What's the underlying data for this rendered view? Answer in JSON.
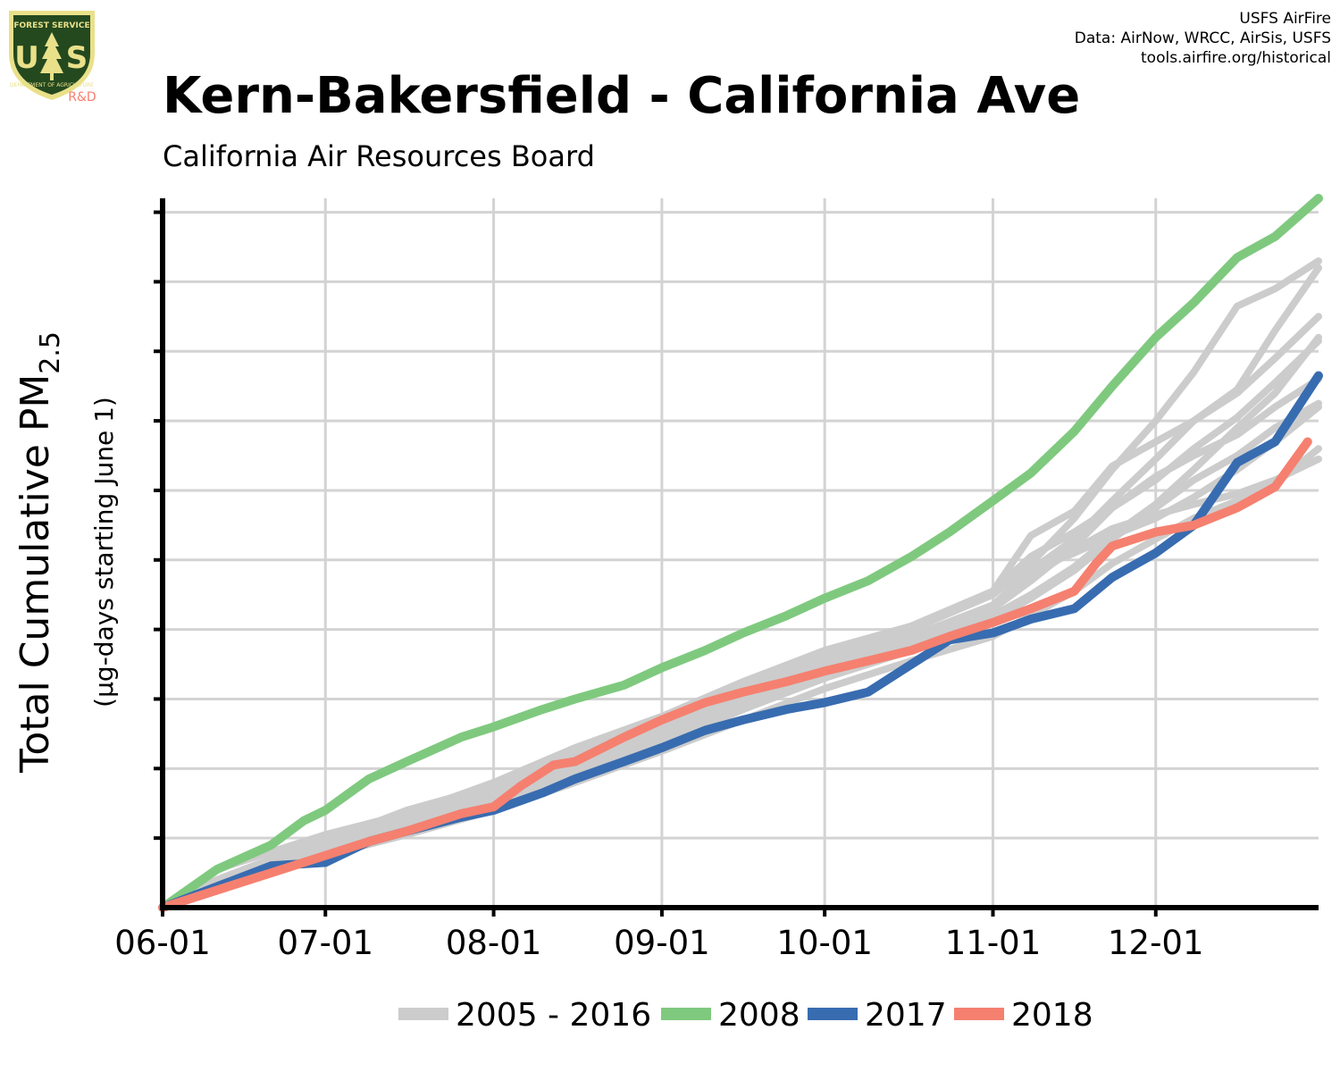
{
  "header": {
    "title": "Kern-Bakersfield - California Ave",
    "subtitle": "California Air Resources Board",
    "credits": [
      "USFS AirFire",
      "Data: AirNow, WRCC, AirSis, USFS",
      "tools.airfire.org/historical"
    ],
    "logo": {
      "top_text": "FOREST SERVICE",
      "initials_left": "U",
      "initials_right": "S",
      "bottom_text": "DEPARTMENT OF AGRICULTURE",
      "tag": "R&D"
    }
  },
  "colors": {
    "history": "#cccccc",
    "y2008": "#7fc97f",
    "y2017": "#386cb0",
    "y2018": "#f58070",
    "grid": "#d3d3d3",
    "axis": "#000000",
    "logo_shield": "#24491f",
    "logo_gold": "#e9e08a",
    "logo_tag": "#f58070"
  },
  "chart_data": {
    "type": "line",
    "title": "Kern-Bakersfield - California Ave",
    "subtitle": "California Air Resources Board",
    "ylabel_main": "Total Cumulative PM",
    "ylabel_subscript": "2.5",
    "ylabel_units": "(µg-days starting June 1)",
    "x_ticks": [
      "06-01",
      "07-01",
      "08-01",
      "09-01",
      "10-01",
      "11-01",
      "12-01"
    ],
    "x_tick_days": [
      0,
      30,
      61,
      92,
      122,
      153,
      183
    ],
    "xlim": [
      0,
      213
    ],
    "ylim": [
      0,
      10.2
    ],
    "y_ticks_unlabeled": [
      1,
      2,
      3,
      4,
      5,
      6,
      7,
      8,
      9,
      10
    ],
    "grid": true,
    "legend_position": "bottom",
    "legend": [
      {
        "label": "2005 - 2016",
        "color": "#cccccc"
      },
      {
        "label": "2008",
        "color": "#7fc97f"
      },
      {
        "label": "2017",
        "color": "#386cb0"
      },
      {
        "label": "2018",
        "color": "#f58070"
      }
    ],
    "history_series": [
      {
        "x": [
          0,
          10,
          20,
          30,
          45,
          61,
          76,
          92,
          107,
          122,
          138,
          153,
          160,
          168,
          175,
          183,
          190,
          198,
          205,
          213
        ],
        "y": [
          0,
          0.55,
          0.8,
          1.05,
          1.35,
          1.8,
          2.3,
          2.75,
          3.25,
          3.7,
          4.05,
          4.55,
          5.35,
          5.7,
          6.35,
          6.7,
          7.0,
          7.45,
          8.3,
          9.2
        ]
      },
      {
        "x": [
          0,
          10,
          20,
          30,
          45,
          61,
          76,
          92,
          107,
          122,
          138,
          153,
          160,
          168,
          175,
          183,
          190,
          198,
          205,
          213
        ],
        "y": [
          0,
          0.4,
          0.7,
          0.95,
          1.4,
          1.75,
          2.2,
          2.65,
          3.1,
          3.55,
          4.0,
          4.5,
          4.95,
          5.6,
          6.3,
          7.0,
          7.7,
          8.65,
          8.9,
          9.3
        ]
      },
      {
        "x": [
          0,
          10,
          20,
          30,
          45,
          61,
          76,
          92,
          107,
          122,
          138,
          153,
          160,
          168,
          175,
          183,
          190,
          198,
          205,
          213
        ],
        "y": [
          0,
          0.35,
          0.6,
          0.9,
          1.2,
          1.65,
          2.1,
          2.6,
          3.05,
          3.5,
          3.9,
          4.35,
          4.85,
          5.3,
          5.85,
          6.45,
          7.0,
          7.4,
          7.9,
          8.5
        ]
      },
      {
        "x": [
          0,
          10,
          20,
          30,
          45,
          61,
          76,
          92,
          107,
          122,
          138,
          153,
          160,
          168,
          175,
          183,
          190,
          198,
          205,
          213
        ],
        "y": [
          0,
          0.3,
          0.55,
          0.85,
          1.15,
          1.5,
          1.9,
          2.35,
          2.85,
          3.3,
          3.75,
          4.2,
          4.5,
          4.9,
          5.35,
          5.8,
          6.3,
          6.9,
          7.4,
          8.2
        ]
      },
      {
        "x": [
          0,
          10,
          20,
          30,
          45,
          61,
          76,
          92,
          107,
          122,
          138,
          153,
          160,
          168,
          175,
          183,
          190,
          198,
          205,
          213
        ],
        "y": [
          0,
          0.3,
          0.5,
          0.8,
          1.1,
          1.5,
          1.95,
          2.45,
          2.9,
          3.35,
          3.8,
          4.3,
          4.75,
          5.15,
          5.45,
          5.65,
          5.8,
          5.95,
          6.15,
          6.45
        ]
      },
      {
        "x": [
          0,
          10,
          20,
          30,
          45,
          61,
          76,
          92,
          107,
          122,
          138,
          153,
          160,
          168,
          175,
          183,
          190,
          198,
          205,
          213
        ],
        "y": [
          0,
          0.35,
          0.6,
          0.95,
          1.3,
          1.7,
          2.15,
          2.6,
          3.05,
          3.5,
          3.9,
          4.35,
          4.85,
          5.1,
          5.35,
          5.6,
          5.9,
          6.3,
          6.7,
          7.2
        ]
      },
      {
        "x": [
          0,
          10,
          20,
          30,
          45,
          61,
          76,
          92,
          107,
          122,
          138,
          153,
          160,
          168,
          175,
          183,
          190,
          198,
          205,
          213
        ],
        "y": [
          0,
          0.3,
          0.5,
          0.75,
          1.05,
          1.4,
          1.8,
          2.25,
          2.7,
          3.15,
          3.55,
          3.9,
          4.2,
          4.55,
          4.95,
          5.3,
          5.6,
          5.85,
          6.1,
          6.6
        ]
      },
      {
        "x": [
          0,
          10,
          20,
          30,
          45,
          61,
          76,
          92,
          107,
          122,
          138,
          153,
          160,
          168,
          175,
          183,
          190,
          198,
          205,
          213
        ],
        "y": [
          0,
          0.35,
          0.55,
          0.85,
          1.2,
          1.6,
          2.05,
          2.5,
          2.95,
          3.4,
          3.8,
          4.3,
          4.7,
          5.2,
          5.75,
          6.2,
          6.5,
          6.8,
          7.2,
          7.6
        ]
      },
      {
        "x": [
          0,
          10,
          20,
          30,
          45,
          61,
          76,
          92,
          107,
          122,
          138,
          153,
          160,
          168,
          175,
          183,
          190,
          198,
          205,
          213
        ],
        "y": [
          0,
          0.4,
          0.65,
          1.0,
          1.35,
          1.75,
          2.2,
          2.65,
          3.15,
          3.6,
          4.05,
          4.55,
          5.05,
          5.4,
          5.75,
          6.15,
          6.6,
          7.05,
          7.55,
          8.15
        ]
      },
      {
        "x": [
          0,
          10,
          20,
          30,
          45,
          61,
          76,
          92,
          107,
          122,
          138,
          153,
          160,
          168,
          175,
          183,
          190,
          198,
          205,
          213
        ],
        "y": [
          0,
          0.3,
          0.55,
          0.85,
          1.2,
          1.6,
          2.05,
          2.5,
          2.9,
          3.3,
          3.7,
          4.15,
          4.45,
          4.85,
          5.3,
          5.75,
          6.15,
          6.5,
          6.9,
          7.25
        ]
      }
    ],
    "series": [
      {
        "name": "2008",
        "color": "#7fc97f",
        "x": [
          0,
          10,
          20,
          26,
          30,
          38,
          45,
          55,
          61,
          70,
          76,
          85,
          92,
          100,
          107,
          115,
          122,
          130,
          138,
          145,
          153,
          160,
          168,
          175,
          183,
          190,
          198,
          205,
          213
        ],
        "y": [
          0,
          0.55,
          0.9,
          1.25,
          1.4,
          1.85,
          2.1,
          2.45,
          2.6,
          2.85,
          3.0,
          3.2,
          3.45,
          3.7,
          3.95,
          4.2,
          4.45,
          4.7,
          5.05,
          5.4,
          5.85,
          6.25,
          6.85,
          7.5,
          8.2,
          8.7,
          9.35,
          9.65,
          10.2
        ]
      },
      {
        "name": "2017",
        "color": "#386cb0",
        "x": [
          0,
          10,
          20,
          30,
          38,
          45,
          55,
          61,
          70,
          76,
          85,
          92,
          100,
          107,
          115,
          122,
          130,
          138,
          145,
          153,
          160,
          168,
          175,
          183,
          190,
          198,
          205,
          213
        ],
        "y": [
          0,
          0.3,
          0.6,
          0.65,
          0.95,
          1.1,
          1.3,
          1.4,
          1.65,
          1.85,
          2.1,
          2.3,
          2.55,
          2.7,
          2.85,
          2.95,
          3.1,
          3.5,
          3.85,
          3.95,
          4.15,
          4.3,
          4.75,
          5.1,
          5.5,
          6.4,
          6.7,
          7.65
        ]
      },
      {
        "name": "2018",
        "color": "#f58070",
        "x": [
          0,
          10,
          20,
          30,
          38,
          45,
          55,
          61,
          66,
          72,
          76,
          85,
          92,
          100,
          107,
          115,
          122,
          130,
          138,
          145,
          153,
          160,
          168,
          172,
          175,
          183,
          190,
          198,
          205,
          211
        ],
        "y": [
          0,
          0.25,
          0.5,
          0.75,
          0.95,
          1.1,
          1.35,
          1.45,
          1.75,
          2.05,
          2.1,
          2.45,
          2.7,
          2.95,
          3.1,
          3.25,
          3.4,
          3.55,
          3.7,
          3.9,
          4.1,
          4.3,
          4.55,
          4.95,
          5.2,
          5.4,
          5.5,
          5.75,
          6.05,
          6.7
        ]
      }
    ]
  }
}
